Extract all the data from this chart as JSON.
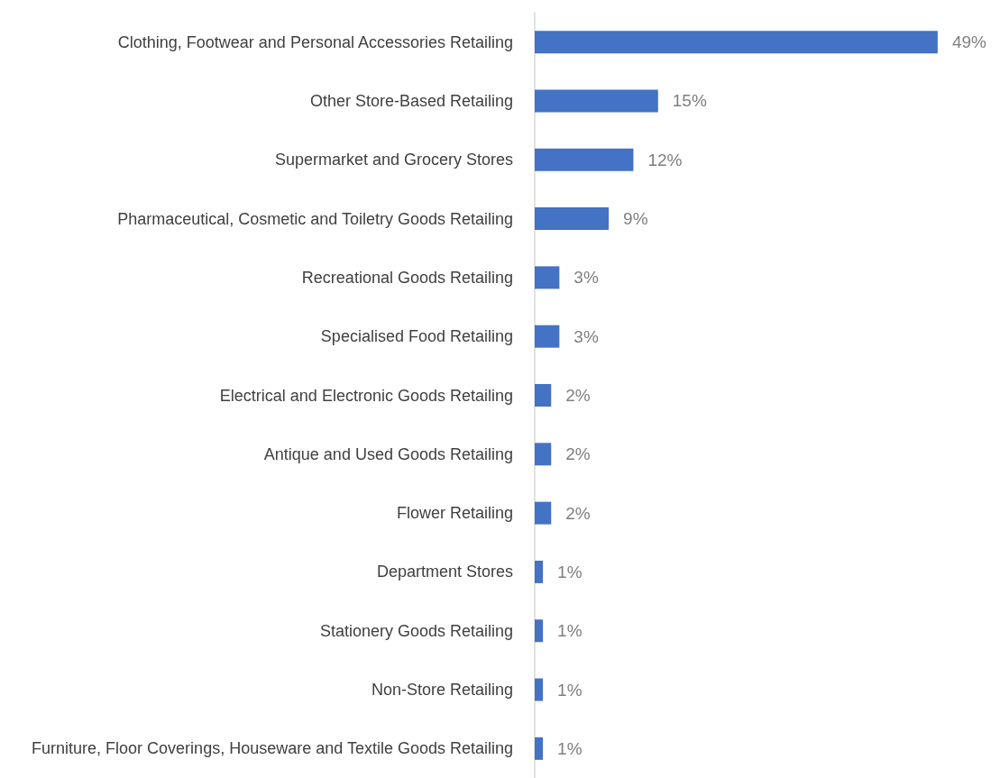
{
  "chart_data": {
    "type": "bar",
    "orientation": "horizontal",
    "tick_labels": "y",
    "categories": [
      "Clothing, Footwear and Personal Accessories Retailing",
      "Other Store-Based Retailing",
      "Supermarket and Grocery Stores",
      "Pharmaceutical, Cosmetic and Toiletry Goods Retailing",
      "Recreational Goods Retailing",
      "Specialised Food Retailing",
      "Electrical and Electronic Goods Retailing",
      "Antique and Used Goods Retailing",
      "Flower Retailing",
      "Department Stores",
      "Stationery Goods Retailing",
      "Non-Store Retailing",
      "Furniture, Floor Coverings, Houseware and Textile Goods Retailing"
    ],
    "values": [
      49,
      15,
      12,
      9,
      3,
      3,
      2,
      2,
      2,
      1,
      1,
      1,
      1
    ],
    "value_labels": [
      "49%",
      "15%",
      "12%",
      "9%",
      "3%",
      "3%",
      "2%",
      "2%",
      "2%",
      "1%",
      "1%",
      "1%",
      "1%"
    ],
    "color": "#4472c4"
  }
}
